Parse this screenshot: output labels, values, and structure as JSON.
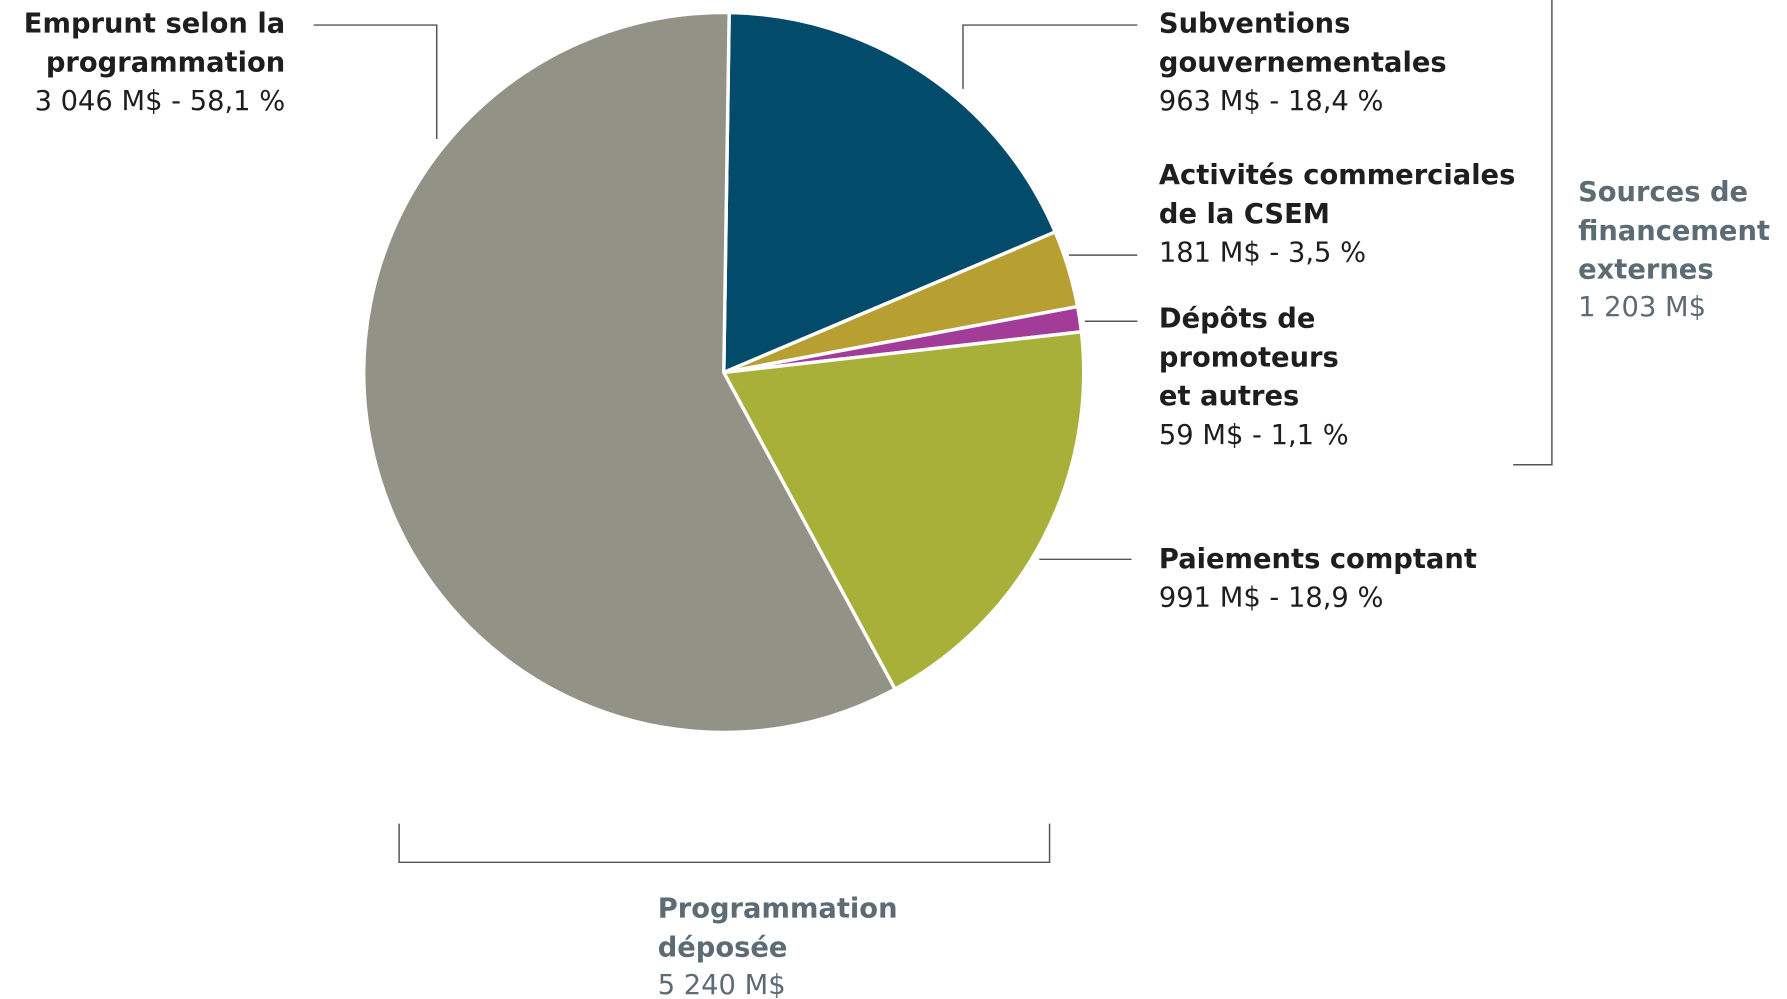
{
  "chart_data": {
    "type": "pie",
    "categories": [
      [
        "Subventions",
        "gouvernementales"
      ],
      [
        "Activités commerciales",
        "de la CSEM"
      ],
      [
        "Dépôts de",
        "promoteurs",
        "et autres"
      ],
      [
        "Paiements comptant"
      ],
      [
        "Emprunt selon la",
        "programmation"
      ]
    ],
    "values": [
      963,
      181,
      59,
      991,
      3046
    ],
    "value_labels": [
      "963 M$ - 18,4 %",
      "181 M$ - 3,5 %",
      "59 M$ - 1,1 %",
      "991 M$ - 18,9 %",
      "3 046 M$ - 58,1 %"
    ],
    "colors": [
      "#034b6a",
      "#b89f32",
      "#a23c98",
      "#a8b03a",
      "#939287"
    ],
    "groups": [
      {
        "lines": [
          "Sources de",
          "financement",
          "externes"
        ],
        "total": "1 203 M$"
      },
      {
        "lines": [
          "Programmation",
          "déposée"
        ],
        "total": "5 240 M$"
      }
    ]
  }
}
